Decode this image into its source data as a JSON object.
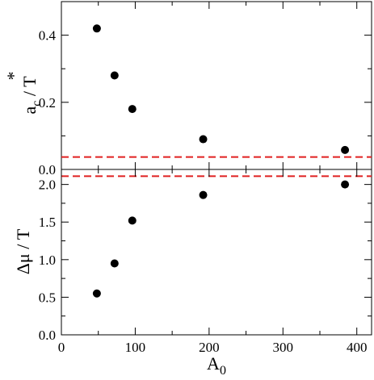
{
  "chart_data": [
    {
      "type": "scatter",
      "panel": "top",
      "ylabel": {
        "base": "a",
        "sub": "c",
        "sup": "*",
        "rest": " / T"
      },
      "xlim": [
        0,
        420
      ],
      "ylim": [
        0,
        0.5
      ],
      "yticks": [
        0.0,
        0.2,
        0.4
      ],
      "ytick_labels": [
        "0.0",
        "0.2",
        "0.4"
      ],
      "series": [
        {
          "x": [
            48,
            72,
            96,
            192,
            384
          ],
          "y": [
            0.42,
            0.28,
            0.18,
            0.09,
            0.058
          ]
        }
      ],
      "reference_line": {
        "y": 0.037,
        "color": "#e02020",
        "style": "dashed"
      },
      "marker_color": "#000000",
      "grid": false
    },
    {
      "type": "scatter",
      "panel": "bottom",
      "ylabel": "Δμ / T",
      "xlabel": {
        "base": "A",
        "sub": "0"
      },
      "xlim": [
        0,
        420
      ],
      "ylim": [
        0,
        2.2
      ],
      "xticks": [
        0,
        100,
        200,
        300,
        400
      ],
      "xtick_labels": [
        "0",
        "100",
        "200",
        "300",
        "400"
      ],
      "yticks": [
        0.0,
        0.5,
        1.0,
        1.5,
        2.0
      ],
      "ytick_labels": [
        "0.0",
        "0.5",
        "1.0",
        "1.5",
        "2.0"
      ],
      "series": [
        {
          "x": [
            48,
            72,
            96,
            192,
            384
          ],
          "y": [
            0.55,
            0.95,
            1.52,
            1.86,
            2.0
          ]
        }
      ],
      "reference_line": {
        "y": 2.11,
        "color": "#e02020",
        "style": "dashed"
      },
      "marker_color": "#000000",
      "grid": false
    }
  ]
}
